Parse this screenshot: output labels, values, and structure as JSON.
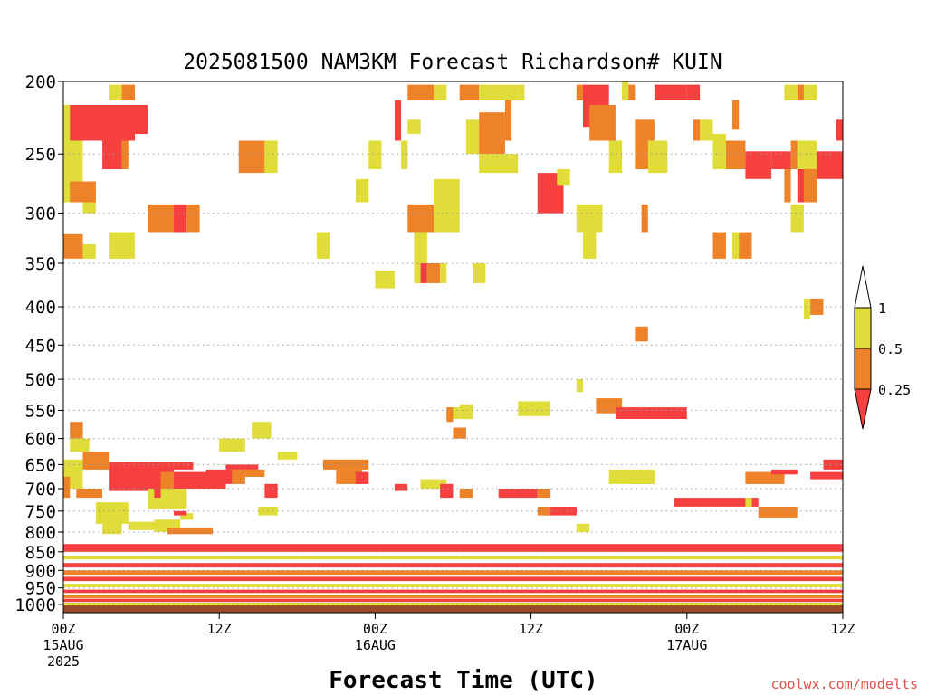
{
  "chart_data": {
    "type": "heatmap",
    "title": "2025081500 NAM3KM Forecast Richardson# KUIN",
    "xlabel": "Forecast Time (UTC)",
    "ylabel": "",
    "credit": "coolwx.com/modelts",
    "x_range_hours": [
      0,
      60
    ],
    "y_range_hpa": [
      200,
      1025
    ],
    "y_scale": "log",
    "y_ticks": [
      200,
      250,
      300,
      350,
      400,
      450,
      500,
      550,
      600,
      650,
      700,
      750,
      800,
      850,
      900,
      950,
      1000
    ],
    "x_ticks": [
      {
        "hour": 0,
        "labels": [
          "00Z",
          "15AUG",
          "2025"
        ]
      },
      {
        "hour": 12,
        "labels": [
          "12Z"
        ]
      },
      {
        "hour": 24,
        "labels": [
          "00Z",
          "16AUG"
        ]
      },
      {
        "hour": 36,
        "labels": [
          "12Z"
        ]
      },
      {
        "hour": 48,
        "labels": [
          "00Z",
          "17AUG"
        ]
      },
      {
        "hour": 60,
        "labels": [
          "12Z"
        ]
      }
    ],
    "grid": "dotted-horizontal",
    "legend": {
      "placement": "right",
      "labels": [
        "1",
        "0.5",
        "0.25"
      ],
      "colors": [
        "#ffffff",
        "#e0dc3a",
        "#ee8229",
        "#f5403f"
      ]
    },
    "colors": {
      "low": "#f5403f",
      "mid": "#ee8229",
      "high": "#e0dc3a",
      "ground": "#9b4b2a"
    },
    "cells": [
      [
        0.0,
        1.5,
        215,
        290,
        "high"
      ],
      [
        0.5,
        5.5,
        215,
        240,
        "low"
      ],
      [
        5.5,
        6.5,
        215,
        235,
        "low"
      ],
      [
        3.5,
        4.5,
        202,
        212,
        "high"
      ],
      [
        4.5,
        5.5,
        202,
        212,
        "mid"
      ],
      [
        3.0,
        4.5,
        240,
        262,
        "low"
      ],
      [
        4.5,
        5.0,
        240,
        262,
        "mid"
      ],
      [
        0.5,
        2.5,
        272,
        290,
        "mid"
      ],
      [
        1.5,
        2.5,
        290,
        300,
        "high"
      ],
      [
        0.0,
        1.5,
        320,
        345,
        "mid"
      ],
      [
        1.5,
        2.5,
        330,
        345,
        "high"
      ],
      [
        3.5,
        5.5,
        318,
        345,
        "high"
      ],
      [
        6.5,
        8.5,
        292,
        318,
        "mid"
      ],
      [
        8.5,
        9.5,
        292,
        318,
        "low"
      ],
      [
        9.5,
        10.5,
        292,
        318,
        "mid"
      ],
      [
        13.5,
        15.5,
        240,
        265,
        "mid"
      ],
      [
        15.5,
        16.5,
        240,
        265,
        "high"
      ],
      [
        19.5,
        20.5,
        318,
        345,
        "high"
      ],
      [
        22.5,
        23.5,
        270,
        290,
        "high"
      ],
      [
        24.0,
        25.5,
        358,
        378,
        "high"
      ],
      [
        23.5,
        24.5,
        240,
        262,
        "high"
      ],
      [
        25.5,
        26.0,
        212,
        240,
        "low"
      ],
      [
        26.0,
        26.5,
        240,
        262,
        "high"
      ],
      [
        26.5,
        27.5,
        225,
        235,
        "high"
      ],
      [
        26.5,
        28.5,
        202,
        212,
        "mid"
      ],
      [
        28.5,
        29.5,
        202,
        212,
        "high"
      ],
      [
        26.5,
        29.5,
        292,
        318,
        "mid"
      ],
      [
        28.5,
        30.5,
        270,
        318,
        "high"
      ],
      [
        27.0,
        28.0,
        318,
        372,
        "high"
      ],
      [
        27.5,
        28.0,
        350,
        372,
        "low"
      ],
      [
        28.0,
        29.0,
        350,
        372,
        "mid"
      ],
      [
        29.0,
        29.5,
        350,
        372,
        "high"
      ],
      [
        30.5,
        32.0,
        202,
        212,
        "mid"
      ],
      [
        32.0,
        34.0,
        202,
        212,
        "high"
      ],
      [
        31.0,
        32.0,
        225,
        250,
        "high"
      ],
      [
        32.0,
        34.0,
        220,
        250,
        "mid"
      ],
      [
        32.0,
        35.0,
        250,
        265,
        "high"
      ],
      [
        31.5,
        32.5,
        350,
        372,
        "high"
      ],
      [
        34.0,
        35.0,
        202,
        212,
        "high"
      ],
      [
        34.0,
        34.5,
        212,
        240,
        "mid"
      ],
      [
        35.0,
        35.5,
        202,
        212,
        "high"
      ],
      [
        36.5,
        38.5,
        265,
        300,
        "low"
      ],
      [
        38.0,
        39.0,
        262,
        275,
        "high"
      ],
      [
        39.5,
        40.0,
        202,
        212,
        "mid"
      ],
      [
        40.0,
        42.0,
        202,
        230,
        "low"
      ],
      [
        40.5,
        42.5,
        215,
        240,
        "mid"
      ],
      [
        42.0,
        43.0,
        240,
        265,
        "high"
      ],
      [
        39.5,
        41.5,
        292,
        318,
        "high"
      ],
      [
        40.0,
        41.0,
        318,
        345,
        "high"
      ],
      [
        43.0,
        43.5,
        200,
        212,
        "high"
      ],
      [
        43.5,
        44.0,
        202,
        212,
        "mid"
      ],
      [
        44.0,
        45.0,
        240,
        262,
        "high"
      ],
      [
        44.0,
        45.5,
        225,
        262,
        "mid"
      ],
      [
        45.0,
        46.5,
        240,
        265,
        "high"
      ],
      [
        44.5,
        45.0,
        292,
        318,
        "mid"
      ],
      [
        45.5,
        48.0,
        202,
        212,
        "low"
      ],
      [
        48.0,
        49.0,
        202,
        212,
        "low"
      ],
      [
        48.5,
        49.0,
        225,
        240,
        "mid"
      ],
      [
        49.0,
        50.0,
        225,
        240,
        "high"
      ],
      [
        50.0,
        51.0,
        235,
        262,
        "high"
      ],
      [
        51.5,
        52.0,
        212,
        232,
        "mid"
      ],
      [
        51.0,
        52.5,
        240,
        262,
        "mid"
      ],
      [
        52.5,
        54.5,
        248,
        270,
        "low"
      ],
      [
        54.5,
        56.0,
        248,
        262,
        "low"
      ],
      [
        56.0,
        56.5,
        240,
        262,
        "mid"
      ],
      [
        55.5,
        56.0,
        262,
        290,
        "mid"
      ],
      [
        56.5,
        58.0,
        240,
        262,
        "high"
      ],
      [
        56.5,
        57.0,
        262,
        290,
        "low"
      ],
      [
        57.0,
        58.0,
        262,
        290,
        "mid"
      ],
      [
        58.0,
        60.0,
        248,
        270,
        "low"
      ],
      [
        55.5,
        56.5,
        202,
        212,
        "high"
      ],
      [
        56.5,
        57.0,
        202,
        212,
        "mid"
      ],
      [
        57.0,
        58.0,
        202,
        212,
        "high"
      ],
      [
        59.5,
        60.0,
        225,
        240,
        "low"
      ],
      [
        50.0,
        51.0,
        318,
        345,
        "mid"
      ],
      [
        51.5,
        52.0,
        318,
        345,
        "high"
      ],
      [
        52.0,
        53.0,
        318,
        345,
        "mid"
      ],
      [
        56.0,
        57.0,
        292,
        318,
        "high"
      ],
      [
        57.5,
        58.5,
        390,
        410,
        "mid"
      ],
      [
        57.0,
        57.5,
        390,
        415,
        "high"
      ],
      [
        44.0,
        45.0,
        425,
        445,
        "mid"
      ],
      [
        41.0,
        43.0,
        530,
        555,
        "mid"
      ],
      [
        42.5,
        48.0,
        545,
        565,
        "low"
      ],
      [
        39.5,
        40.0,
        500,
        520,
        "high"
      ],
      [
        35.0,
        37.5,
        535,
        560,
        "high"
      ],
      [
        29.5,
        30.5,
        545,
        565,
        "high"
      ],
      [
        30.5,
        31.5,
        540,
        565,
        "high"
      ],
      [
        29.5,
        30.0,
        545,
        570,
        "mid"
      ],
      [
        30.0,
        31.0,
        580,
        600,
        "mid"
      ],
      [
        14.5,
        16.0,
        570,
        600,
        "high"
      ],
      [
        12.0,
        14.0,
        600,
        625,
        "high"
      ],
      [
        16.5,
        18.0,
        625,
        640,
        "high"
      ],
      [
        0.5,
        1.5,
        570,
        600,
        "mid"
      ],
      [
        0.5,
        2.0,
        600,
        625,
        "high"
      ],
      [
        1.5,
        3.5,
        625,
        660,
        "mid"
      ],
      [
        3.5,
        8.5,
        645,
        705,
        "low"
      ],
      [
        8.5,
        10.0,
        645,
        660,
        "low"
      ],
      [
        8.5,
        12.5,
        665,
        700,
        "low"
      ],
      [
        7.5,
        8.5,
        665,
        700,
        "mid"
      ],
      [
        12.5,
        15.0,
        650,
        660,
        "low"
      ],
      [
        11.0,
        13.0,
        660,
        690,
        "low"
      ],
      [
        13.0,
        14.0,
        660,
        690,
        "mid"
      ],
      [
        14.0,
        15.5,
        660,
        675,
        "mid"
      ],
      [
        20.0,
        23.5,
        640,
        660,
        "mid"
      ],
      [
        21.0,
        23.0,
        660,
        690,
        "mid"
      ],
      [
        22.5,
        23.5,
        665,
        690,
        "low"
      ],
      [
        25.5,
        26.5,
        690,
        705,
        "low"
      ],
      [
        27.5,
        29.5,
        680,
        700,
        "high"
      ],
      [
        29.0,
        30.0,
        690,
        720,
        "low"
      ],
      [
        30.5,
        31.5,
        700,
        720,
        "mid"
      ],
      [
        33.5,
        36.5,
        700,
        720,
        "low"
      ],
      [
        36.5,
        37.5,
        700,
        720,
        "mid"
      ],
      [
        37.0,
        39.5,
        740,
        760,
        "low"
      ],
      [
        36.5,
        37.5,
        740,
        760,
        "mid"
      ],
      [
        39.5,
        40.5,
        780,
        800,
        "high"
      ],
      [
        47.0,
        53.5,
        720,
        740,
        "low"
      ],
      [
        53.5,
        56.5,
        740,
        765,
        "mid"
      ],
      [
        52.5,
        53.0,
        720,
        740,
        "high"
      ],
      [
        43.5,
        45.5,
        665,
        690,
        "mid"
      ],
      [
        42.0,
        45.5,
        660,
        690,
        "high"
      ],
      [
        52.5,
        55.5,
        665,
        690,
        "mid"
      ],
      [
        54.5,
        56.5,
        660,
        670,
        "low"
      ],
      [
        58.5,
        60.0,
        640,
        660,
        "low"
      ],
      [
        57.5,
        60.0,
        665,
        680,
        "low"
      ],
      [
        0.0,
        1.5,
        640,
        700,
        "high"
      ],
      [
        1.0,
        3.0,
        700,
        720,
        "mid"
      ],
      [
        2.5,
        5.0,
        730,
        780,
        "high"
      ],
      [
        6.5,
        9.5,
        700,
        745,
        "high"
      ],
      [
        7.0,
        7.5,
        700,
        720,
        "low"
      ],
      [
        15.0,
        16.5,
        740,
        760,
        "high"
      ],
      [
        15.5,
        16.5,
        690,
        720,
        "low"
      ],
      [
        0.0,
        0.5,
        675,
        720,
        "mid"
      ],
      [
        5.0,
        7.0,
        775,
        795,
        "high"
      ],
      [
        7.0,
        9.0,
        770,
        800,
        "high"
      ],
      [
        8.0,
        11.5,
        790,
        805,
        "mid"
      ],
      [
        3.0,
        4.5,
        760,
        805,
        "high"
      ],
      [
        9.0,
        10.0,
        755,
        770,
        "high"
      ],
      [
        8.5,
        9.5,
        750,
        760,
        "low"
      ],
      [
        0.0,
        60.0,
        830,
        850,
        "low"
      ],
      [
        0.0,
        60.0,
        860,
        870,
        "high"
      ],
      [
        0.0,
        60.0,
        880,
        892,
        "low"
      ],
      [
        0.0,
        60.0,
        900,
        912,
        "mid"
      ],
      [
        0.0,
        60.0,
        918,
        930,
        "low"
      ],
      [
        0.0,
        60.0,
        938,
        948,
        "high"
      ],
      [
        0.0,
        60.0,
        955,
        965,
        "low"
      ],
      [
        0.0,
        60.0,
        970,
        980,
        "mid"
      ],
      [
        0.0,
        60.0,
        982,
        992,
        "low"
      ],
      [
        0.0,
        60.0,
        994,
        1001,
        "high"
      ]
    ]
  }
}
